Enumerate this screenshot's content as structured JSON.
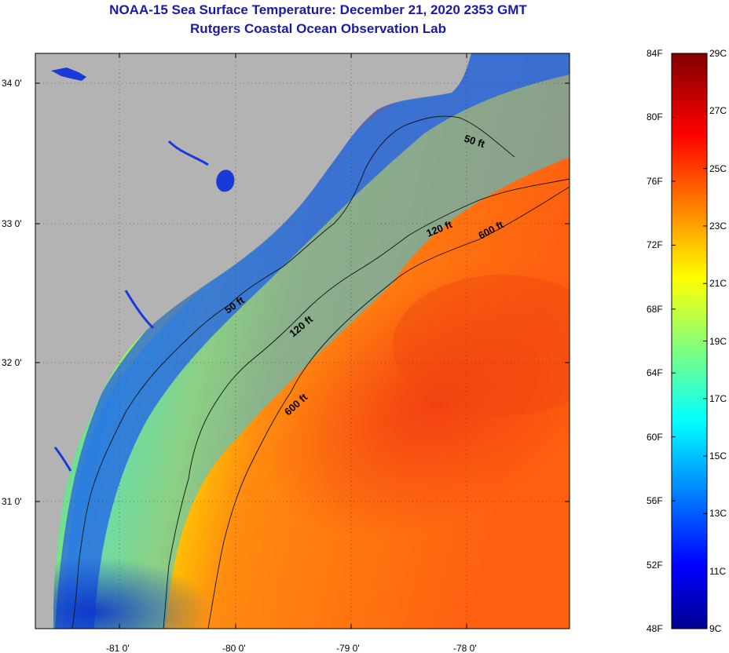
{
  "title": {
    "line1": "NOAA-15 Sea Surface Temperature:  December 21, 2020 2353 GMT",
    "line2": "Rutgers Coastal Ocean Observation Lab"
  },
  "map": {
    "x_ticks": [
      "-81 0'",
      "-80 0'",
      "-79 0'",
      "-78 0'"
    ],
    "y_ticks": [
      "34 0'",
      "33 0'",
      "32 0'",
      "31 0'"
    ],
    "contours": [
      "50 ft",
      "50 ft",
      "120 ft",
      "120 ft",
      "600 ft",
      "600 ft"
    ],
    "land_color": "#b3b3b3"
  },
  "colorbar": {
    "fahrenheit": [
      "84F",
      "80F",
      "76F",
      "72F",
      "68F",
      "64F",
      "60F",
      "56F",
      "52F",
      "48F"
    ],
    "celsius": [
      "29C",
      "27C",
      "25C",
      "23C",
      "21C",
      "19C",
      "17C",
      "15C",
      "13C",
      "11C",
      "9C"
    ],
    "range_f": [
      48,
      84
    ],
    "range_c": [
      9,
      29
    ],
    "colormap": "jet"
  }
}
